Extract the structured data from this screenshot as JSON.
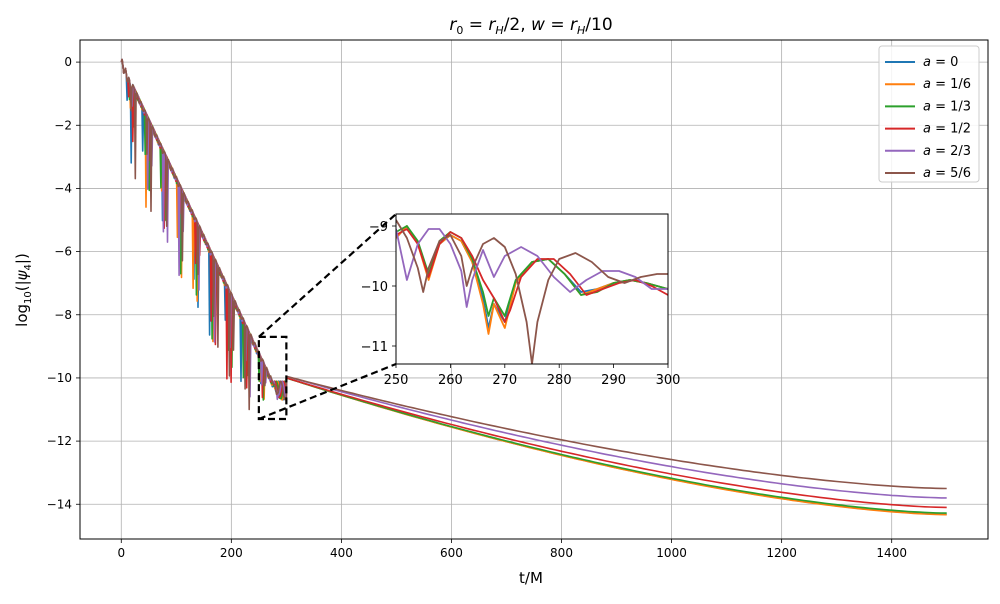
{
  "chart_data": {
    "type": "line",
    "title_parts": {
      "r0": "r",
      "r0_sub": "0",
      "eq1": " = ",
      "rH": "r",
      "rH_sub": "H",
      "half": "/2, ",
      "w": "w",
      "eq2": " = ",
      "rH2": "r",
      "rH2_sub": "H",
      "tenth": "/10"
    },
    "xlabel": "t/M",
    "ylabel_parts": {
      "log": "log",
      "log_sub": "10",
      "open": "(|",
      "psi": "ψ",
      "psi_sub": "4",
      "close": "|)"
    },
    "xlim": [
      -75,
      1575
    ],
    "ylim": [
      -15.1,
      0.7
    ],
    "xticks": [
      "0",
      "200",
      "400",
      "600",
      "800",
      "1000",
      "1200",
      "1400"
    ],
    "xtick_values": [
      0,
      200,
      400,
      600,
      800,
      1000,
      1200,
      1400
    ],
    "yticks": [
      "0",
      "−2",
      "−4",
      "−6",
      "−8",
      "−10",
      "−12",
      "−14"
    ],
    "ytick_values": [
      0,
      -2,
      -4,
      -6,
      -8,
      -10,
      -12,
      -14
    ],
    "grid": true,
    "legend_position": "top-right",
    "series": [
      {
        "name": "a = 0",
        "label_var": "a",
        "label_val": "0",
        "color": "#1f77b4",
        "final": -14.32,
        "tail_offset": 0.0
      },
      {
        "name": "a = 1/6",
        "label_var": "a",
        "label_val": "1/6",
        "color": "#ff7f0e",
        "final": -14.33,
        "tail_offset": -0.02
      },
      {
        "name": "a = 1/3",
        "label_var": "a",
        "label_val": "1/3",
        "color": "#2ca02c",
        "final": -14.28,
        "tail_offset": 0.02
      },
      {
        "name": "a = 1/2",
        "label_var": "a",
        "label_val": "1/2",
        "color": "#d62728",
        "final": -14.1,
        "tail_offset": 0.12
      },
      {
        "name": "a = 2/3",
        "label_var": "a",
        "label_val": "2/3",
        "color": "#9467bd",
        "final": -13.8,
        "tail_offset": 0.3
      },
      {
        "name": "a = 5/6",
        "label_var": "a",
        "label_val": "5/6",
        "color": "#8c564b",
        "final": -13.5,
        "tail_offset": 0.5
      }
    ],
    "inset": {
      "xlim": [
        250,
        300
      ],
      "ylim": [
        -11.3,
        -8.8
      ],
      "xticks": [
        "250",
        "260",
        "270",
        "280",
        "290",
        "300"
      ],
      "xtick_values": [
        250,
        260,
        270,
        280,
        290,
        300
      ],
      "yticks": [
        "−9",
        "−10",
        "−11"
      ],
      "ytick_values": [
        -9,
        -10,
        -11
      ],
      "zoom_box": {
        "x": [
          250,
          300
        ],
        "y": [
          -11.3,
          -8.7
        ]
      },
      "series_points": [
        {
          "name": "a = 0",
          "points": [
            [
              250,
              -9.2
            ],
            [
              252,
              -9.0
            ],
            [
              254,
              -9.3
            ],
            [
              256,
              -9.85
            ],
            [
              258,
              -9.3
            ],
            [
              260,
              -9.15
            ],
            [
              262,
              -9.25
            ],
            [
              264,
              -9.6
            ],
            [
              266,
              -10.2
            ],
            [
              267,
              -10.7
            ],
            [
              268,
              -10.3
            ],
            [
              270,
              -10.6
            ],
            [
              272,
              -9.95
            ],
            [
              275,
              -9.6
            ],
            [
              278,
              -9.55
            ],
            [
              281,
              -9.8
            ],
            [
              284,
              -10.1
            ],
            [
              287,
              -10.05
            ],
            [
              290,
              -9.95
            ],
            [
              293,
              -9.9
            ],
            [
              296,
              -9.95
            ],
            [
              300,
              -10.05
            ]
          ]
        },
        {
          "name": "a = 1/6",
          "points": [
            [
              250,
              -9.2
            ],
            [
              252,
              -9.0
            ],
            [
              254,
              -9.3
            ],
            [
              256,
              -9.9
            ],
            [
              258,
              -9.3
            ],
            [
              260,
              -9.15
            ],
            [
              262,
              -9.25
            ],
            [
              264,
              -9.6
            ],
            [
              266,
              -10.3
            ],
            [
              267,
              -10.8
            ],
            [
              268,
              -10.3
            ],
            [
              270,
              -10.7
            ],
            [
              272,
              -9.95
            ],
            [
              275,
              -9.6
            ],
            [
              278,
              -9.55
            ],
            [
              281,
              -9.8
            ],
            [
              284,
              -10.15
            ],
            [
              287,
              -10.05
            ],
            [
              290,
              -9.95
            ],
            [
              293,
              -9.9
            ],
            [
              296,
              -9.95
            ],
            [
              300,
              -10.05
            ]
          ]
        },
        {
          "name": "a = 1/3",
          "points": [
            [
              250,
              -9.1
            ],
            [
              252,
              -9.0
            ],
            [
              254,
              -9.25
            ],
            [
              256,
              -9.8
            ],
            [
              258,
              -9.25
            ],
            [
              260,
              -9.1
            ],
            [
              262,
              -9.2
            ],
            [
              264,
              -9.55
            ],
            [
              266,
              -10.1
            ],
            [
              267,
              -10.5
            ],
            [
              268,
              -10.2
            ],
            [
              270,
              -10.5
            ],
            [
              272,
              -9.9
            ],
            [
              275,
              -9.6
            ],
            [
              278,
              -9.55
            ],
            [
              281,
              -9.8
            ],
            [
              284,
              -10.15
            ],
            [
              287,
              -10.1
            ],
            [
              290,
              -9.95
            ],
            [
              293,
              -9.9
            ],
            [
              296,
              -9.95
            ],
            [
              300,
              -10.05
            ]
          ]
        },
        {
          "name": "a = 1/2",
          "points": [
            [
              250,
              -9.15
            ],
            [
              252,
              -9.05
            ],
            [
              254,
              -9.3
            ],
            [
              256,
              -9.85
            ],
            [
              258,
              -9.3
            ],
            [
              260,
              -9.1
            ],
            [
              262,
              -9.2
            ],
            [
              264,
              -9.5
            ],
            [
              266,
              -9.9
            ],
            [
              268,
              -10.2
            ],
            [
              270,
              -10.6
            ],
            [
              271,
              -10.4
            ],
            [
              273,
              -9.85
            ],
            [
              276,
              -9.55
            ],
            [
              279,
              -9.55
            ],
            [
              282,
              -9.8
            ],
            [
              285,
              -10.15
            ],
            [
              288,
              -10.05
            ],
            [
              291,
              -9.95
            ],
            [
              294,
              -9.9
            ],
            [
              297,
              -10.0
            ],
            [
              300,
              -10.15
            ]
          ]
        },
        {
          "name": "a = 2/3",
          "points": [
            [
              250,
              -9.05
            ],
            [
              252,
              -9.9
            ],
            [
              254,
              -9.3
            ],
            [
              256,
              -9.05
            ],
            [
              258,
              -9.05
            ],
            [
              260,
              -9.3
            ],
            [
              262,
              -9.75
            ],
            [
              263,
              -10.35
            ],
            [
              264,
              -9.9
            ],
            [
              266,
              -9.4
            ],
            [
              268,
              -9.85
            ],
            [
              270,
              -9.5
            ],
            [
              273,
              -9.35
            ],
            [
              276,
              -9.5
            ],
            [
              279,
              -9.85
            ],
            [
              282,
              -10.1
            ],
            [
              285,
              -9.9
            ],
            [
              288,
              -9.75
            ],
            [
              291,
              -9.75
            ],
            [
              294,
              -9.85
            ],
            [
              297,
              -10.05
            ],
            [
              300,
              -10.05
            ]
          ]
        },
        {
          "name": "a = 5/6",
          "points": [
            [
              250,
              -8.9
            ],
            [
              252,
              -9.2
            ],
            [
              254,
              -9.7
            ],
            [
              255,
              -10.1
            ],
            [
              256,
              -9.7
            ],
            [
              258,
              -9.25
            ],
            [
              260,
              -9.15
            ],
            [
              262,
              -9.5
            ],
            [
              263,
              -10.0
            ],
            [
              264,
              -9.7
            ],
            [
              266,
              -9.3
            ],
            [
              268,
              -9.2
            ],
            [
              270,
              -9.35
            ],
            [
              272,
              -9.8
            ],
            [
              274,
              -10.6
            ],
            [
              275,
              -11.3
            ],
            [
              276,
              -10.6
            ],
            [
              278,
              -9.9
            ],
            [
              280,
              -9.55
            ],
            [
              283,
              -9.45
            ],
            [
              286,
              -9.6
            ],
            [
              289,
              -9.85
            ],
            [
              292,
              -9.95
            ],
            [
              295,
              -9.85
            ],
            [
              298,
              -9.8
            ],
            [
              300,
              -9.8
            ]
          ]
        }
      ]
    }
  }
}
